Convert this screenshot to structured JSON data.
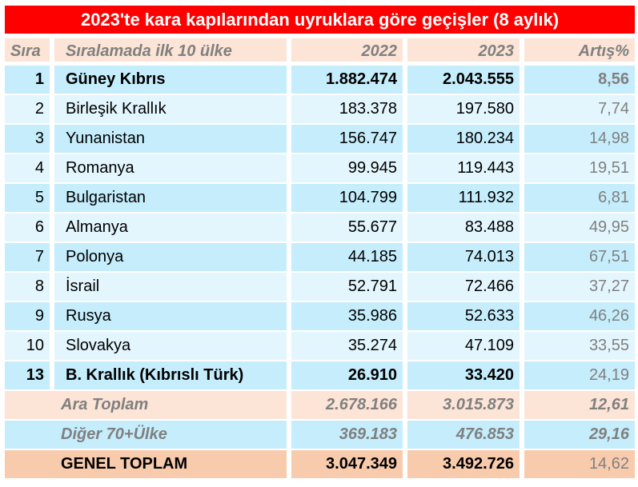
{
  "title": "2023'te kara kapılarından uyruklara göre geçişler (8 aylık)",
  "headers": [
    "Sıra",
    "Sıralamada ilk 10 ülke",
    "2022",
    "2023",
    "Artış%"
  ],
  "rows": [
    {
      "rank": "1",
      "country": "Güney Kıbrıs",
      "y2022": "1.882.474",
      "y2023": "2.043.555",
      "change": "8,56"
    },
    {
      "rank": "2",
      "country": "Birleşik Krallık",
      "y2022": "183.378",
      "y2023": "197.580",
      "change": "7,74"
    },
    {
      "rank": "3",
      "country": "Yunanistan",
      "y2022": "156.747",
      "y2023": "180.234",
      "change": "14,98"
    },
    {
      "rank": "4",
      "country": "Romanya",
      "y2022": "99.945",
      "y2023": "119.443",
      "change": "19,51"
    },
    {
      "rank": "5",
      "country": "Bulgaristan",
      "y2022": "104.799",
      "y2023": "111.932",
      "change": "6,81"
    },
    {
      "rank": "6",
      "country": "Almanya",
      "y2022": "55.677",
      "y2023": "83.488",
      "change": "49,95"
    },
    {
      "rank": "7",
      "country": "Polonya",
      "y2022": "44.185",
      "y2023": "74.013",
      "change": "67,51"
    },
    {
      "rank": "8",
      "country": "İsrail",
      "y2022": "52.791",
      "y2023": "72.466",
      "change": "37,27"
    },
    {
      "rank": "9",
      "country": "Rusya",
      "y2022": "35.986",
      "y2023": "52.633",
      "change": "46,26"
    },
    {
      "rank": "10",
      "country": "Slovakya",
      "y2022": "35.274",
      "y2023": "47.109",
      "change": "33,55"
    },
    {
      "rank": "13",
      "country": "B. Krallık (Kıbrıslı Türk)",
      "y2022": "26.910",
      "y2023": "33.420",
      "change": "24,19"
    }
  ],
  "subtotal": {
    "label": "Ara Toplam",
    "y2022": "2.678.166",
    "y2023": "3.015.873",
    "change": "12,61"
  },
  "others": {
    "label": "Diğer 70+Ülke",
    "y2022": "369.183",
    "y2023": "476.853",
    "change": "29,16"
  },
  "total": {
    "label": "GENEL TOPLAM",
    "y2022": "3.047.349",
    "y2023": "3.492.726",
    "change": "14,62"
  },
  "colors": {
    "title_bg": "#ff0000",
    "header_bg": "#fce4d6",
    "row_dark": "#c5edfc",
    "row_light": "#e3f6fd",
    "total_bg": "#f8cbad",
    "muted_text": "#808080"
  }
}
